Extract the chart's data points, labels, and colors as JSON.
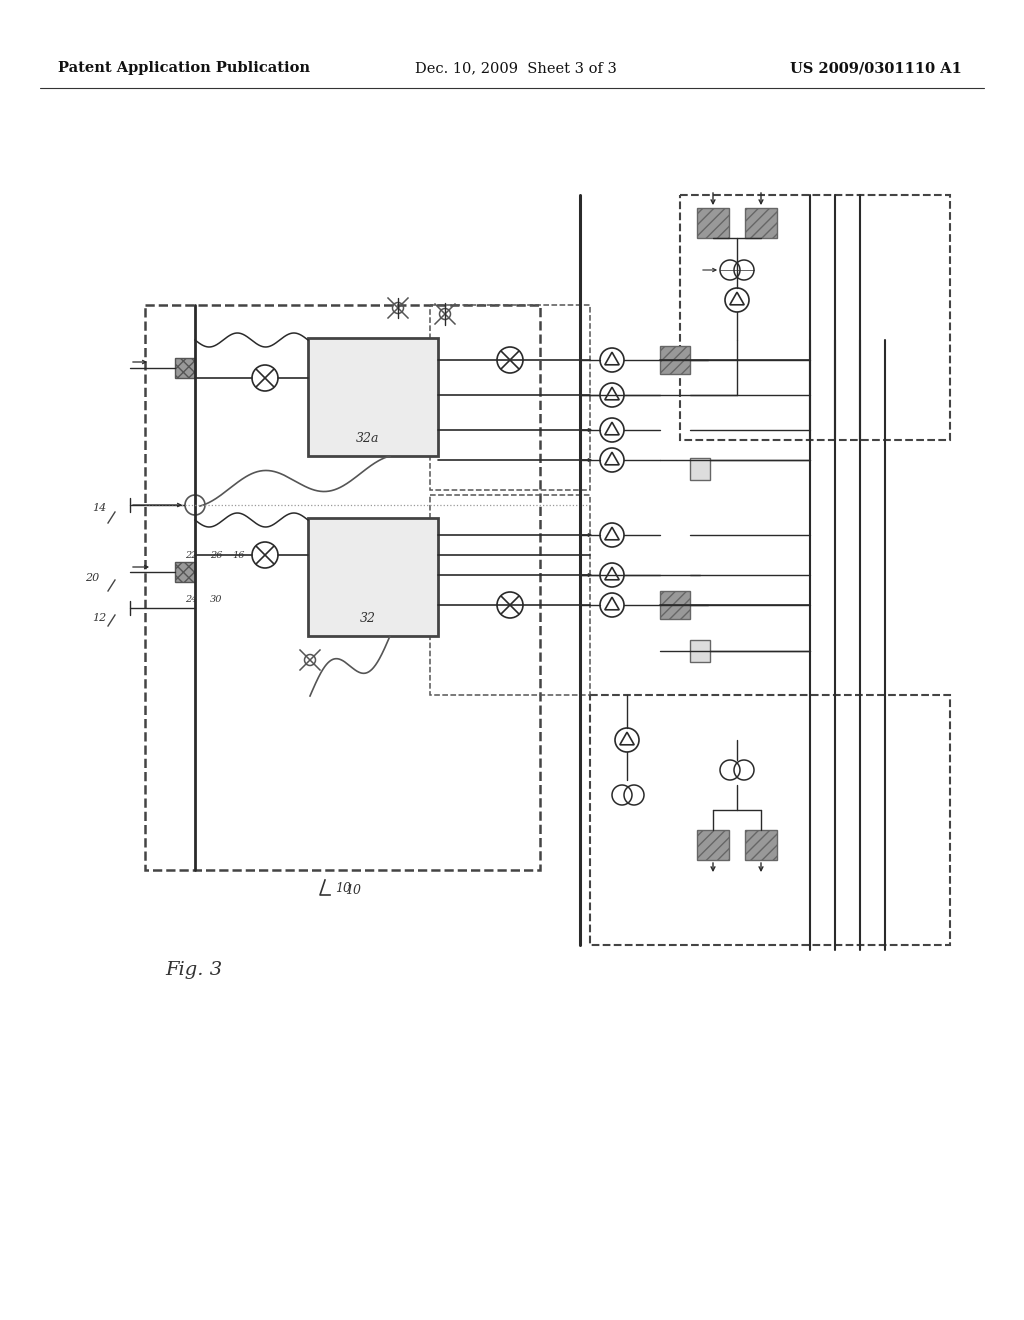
{
  "background_color": "#ffffff",
  "header_left": "Patent Application Publication",
  "header_center": "Dec. 10, 2009  Sheet 3 of 3",
  "header_right": "US 2009/0301110 A1",
  "header_fontsize": 10.5,
  "line_color": "#2a2a2a",
  "dashed_color": "#444444",
  "fig_label": "Fig. 3",
  "ref_10": "10",
  "ref_14": "14",
  "ref_20": "20",
  "ref_12": "12",
  "ref_22": "22",
  "ref_26": "26",
  "ref_16": "16",
  "ref_24": "24",
  "ref_30": "30",
  "ref_32": "32",
  "ref_32a": "32a"
}
